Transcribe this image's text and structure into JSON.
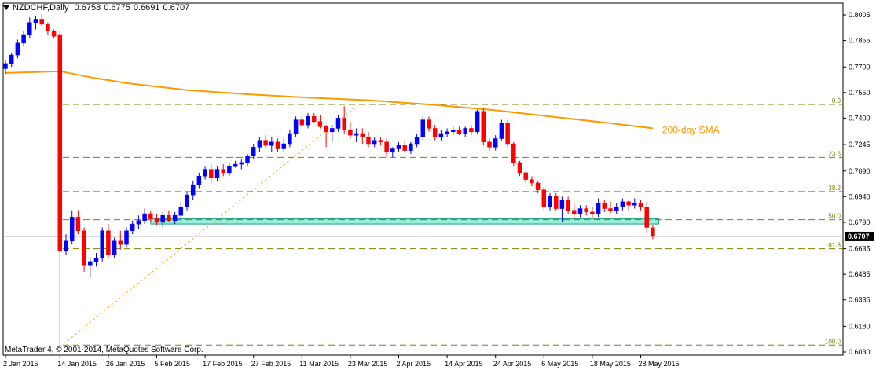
{
  "header": {
    "symbol_timeframe": "NZDCHF,Daily",
    "ohlc": [
      "0.6758",
      "0.6775",
      "0.6691",
      "0.6707"
    ]
  },
  "footer": {
    "copyright": "MetaTrader 4, © 2001-2014, MetaQuotes Software Corp."
  },
  "colors": {
    "bull": "#0000ff",
    "bear": "#ff0000",
    "sma": "#ff9900",
    "fib": "#808000",
    "zone": "#40e0c0",
    "grid": "#000000",
    "price_tag_bg": "#000000",
    "price_tag_fg": "#ffffff"
  },
  "chart_data": {
    "type": "candlestick",
    "instrument": "NZDCHF",
    "timeframe": "Daily",
    "ylim": [
      0.603,
      0.806
    ],
    "y_ticks": [
      "0.8005",
      "0.7855",
      "0.7700",
      "0.7550",
      "0.7400",
      "0.7245",
      "0.7090",
      "0.6940",
      "0.6790",
      "0.6635",
      "0.6485",
      "0.6335",
      "0.6180",
      "0.6030"
    ],
    "current_price": "0.6707",
    "x_labels": [
      "2 Jan 2015",
      "14 Jan 2015",
      "26 Jan 2015",
      "5 Feb 2015",
      "17 Feb 2015",
      "27 Feb 2015",
      "11 Mar 2015",
      "23 Mar 2015",
      "2 Apr 2015",
      "14 Apr 2015",
      "24 Apr 2015",
      "6 May 2015",
      "18 May 2015",
      "28 May 2015"
    ],
    "x_label_index": [
      0,
      9,
      17,
      25,
      33,
      41,
      49,
      57,
      65,
      73,
      81,
      89,
      97,
      105
    ],
    "candles": [
      [
        0.769,
        0.774,
        0.766,
        0.772
      ],
      [
        0.772,
        0.778,
        0.77,
        0.777
      ],
      [
        0.777,
        0.786,
        0.775,
        0.784
      ],
      [
        0.784,
        0.791,
        0.782,
        0.789
      ],
      [
        0.789,
        0.799,
        0.787,
        0.796
      ],
      [
        0.796,
        0.8,
        0.792,
        0.798
      ],
      [
        0.798,
        0.801,
        0.794,
        0.795
      ],
      [
        0.795,
        0.796,
        0.789,
        0.791
      ],
      [
        0.791,
        0.792,
        0.787,
        0.788
      ],
      [
        0.789,
        0.791,
        0.606,
        0.662
      ],
      [
        0.662,
        0.672,
        0.66,
        0.668
      ],
      [
        0.668,
        0.686,
        0.666,
        0.682
      ],
      [
        0.682,
        0.686,
        0.672,
        0.674
      ],
      [
        0.674,
        0.676,
        0.65,
        0.654
      ],
      [
        0.654,
        0.658,
        0.647,
        0.656
      ],
      [
        0.656,
        0.661,
        0.653,
        0.658
      ],
      [
        0.658,
        0.676,
        0.656,
        0.674
      ],
      [
        0.674,
        0.678,
        0.658,
        0.66
      ],
      [
        0.66,
        0.67,
        0.658,
        0.668
      ],
      [
        0.668,
        0.674,
        0.663,
        0.666
      ],
      [
        0.666,
        0.676,
        0.664,
        0.674
      ],
      [
        0.674,
        0.68,
        0.672,
        0.678
      ],
      [
        0.678,
        0.683,
        0.675,
        0.68
      ],
      [
        0.68,
        0.687,
        0.678,
        0.684
      ],
      [
        0.684,
        0.686,
        0.679,
        0.681
      ],
      [
        0.681,
        0.684,
        0.677,
        0.679
      ],
      [
        0.679,
        0.685,
        0.676,
        0.683
      ],
      [
        0.683,
        0.686,
        0.679,
        0.68
      ],
      [
        0.68,
        0.685,
        0.678,
        0.683
      ],
      [
        0.683,
        0.691,
        0.68,
        0.688
      ],
      [
        0.688,
        0.697,
        0.686,
        0.695
      ],
      [
        0.695,
        0.703,
        0.692,
        0.701
      ],
      [
        0.701,
        0.708,
        0.699,
        0.706
      ],
      [
        0.706,
        0.712,
        0.704,
        0.71
      ],
      [
        0.71,
        0.713,
        0.702,
        0.705
      ],
      [
        0.705,
        0.712,
        0.703,
        0.71
      ],
      [
        0.71,
        0.713,
        0.706,
        0.708
      ],
      [
        0.708,
        0.714,
        0.706,
        0.712
      ],
      [
        0.712,
        0.715,
        0.711,
        0.713
      ],
      [
        0.713,
        0.716,
        0.71,
        0.714
      ],
      [
        0.714,
        0.719,
        0.712,
        0.718
      ],
      [
        0.718,
        0.725,
        0.716,
        0.723
      ],
      [
        0.723,
        0.729,
        0.72,
        0.727
      ],
      [
        0.727,
        0.73,
        0.722,
        0.724
      ],
      [
        0.724,
        0.729,
        0.72,
        0.726
      ],
      [
        0.726,
        0.728,
        0.72,
        0.722
      ],
      [
        0.722,
        0.728,
        0.72,
        0.725
      ],
      [
        0.725,
        0.733,
        0.723,
        0.731
      ],
      [
        0.731,
        0.741,
        0.729,
        0.739
      ],
      [
        0.739,
        0.742,
        0.734,
        0.736
      ],
      [
        0.736,
        0.743,
        0.734,
        0.741
      ],
      [
        0.741,
        0.743,
        0.737,
        0.738
      ],
      [
        0.738,
        0.742,
        0.734,
        0.735
      ],
      [
        0.735,
        0.736,
        0.723,
        0.732
      ],
      [
        0.732,
        0.736,
        0.726,
        0.734
      ],
      [
        0.734,
        0.742,
        0.732,
        0.74
      ],
      [
        0.74,
        0.747,
        0.731,
        0.733
      ],
      [
        0.733,
        0.738,
        0.728,
        0.73
      ],
      [
        0.73,
        0.734,
        0.726,
        0.731
      ],
      [
        0.731,
        0.734,
        0.725,
        0.729
      ],
      [
        0.729,
        0.732,
        0.723,
        0.725
      ],
      [
        0.725,
        0.729,
        0.723,
        0.727
      ],
      [
        0.727,
        0.729,
        0.724,
        0.726
      ],
      [
        0.726,
        0.728,
        0.717,
        0.72
      ],
      [
        0.72,
        0.723,
        0.717,
        0.722
      ],
      [
        0.722,
        0.726,
        0.72,
        0.724
      ],
      [
        0.724,
        0.727,
        0.72,
        0.721
      ],
      [
        0.721,
        0.726,
        0.719,
        0.725
      ],
      [
        0.725,
        0.731,
        0.723,
        0.729
      ],
      [
        0.729,
        0.741,
        0.727,
        0.739
      ],
      [
        0.739,
        0.741,
        0.732,
        0.734
      ],
      [
        0.734,
        0.736,
        0.727,
        0.729
      ],
      [
        0.729,
        0.733,
        0.727,
        0.731
      ],
      [
        0.731,
        0.734,
        0.729,
        0.732
      ],
      [
        0.732,
        0.735,
        0.73,
        0.733
      ],
      [
        0.733,
        0.735,
        0.73,
        0.731
      ],
      [
        0.731,
        0.735,
        0.729,
        0.734
      ],
      [
        0.734,
        0.736,
        0.73,
        0.732
      ],
      [
        0.732,
        0.745,
        0.731,
        0.744
      ],
      [
        0.744,
        0.746,
        0.724,
        0.726
      ],
      [
        0.726,
        0.728,
        0.721,
        0.723
      ],
      [
        0.723,
        0.73,
        0.721,
        0.728
      ],
      [
        0.728,
        0.739,
        0.727,
        0.737
      ],
      [
        0.737,
        0.739,
        0.723,
        0.725
      ],
      [
        0.725,
        0.726,
        0.712,
        0.714
      ],
      [
        0.714,
        0.715,
        0.706,
        0.708
      ],
      [
        0.708,
        0.709,
        0.702,
        0.704
      ],
      [
        0.704,
        0.706,
        0.7,
        0.702
      ],
      [
        0.702,
        0.703,
        0.696,
        0.698
      ],
      [
        0.698,
        0.7,
        0.686,
        0.688
      ],
      [
        0.688,
        0.696,
        0.686,
        0.694
      ],
      [
        0.694,
        0.696,
        0.686,
        0.687
      ],
      [
        0.687,
        0.694,
        0.679,
        0.692
      ],
      [
        0.692,
        0.694,
        0.684,
        0.686
      ],
      [
        0.686,
        0.69,
        0.681,
        0.684
      ],
      [
        0.684,
        0.689,
        0.682,
        0.687
      ],
      [
        0.687,
        0.689,
        0.683,
        0.685
      ],
      [
        0.685,
        0.688,
        0.682,
        0.684
      ],
      [
        0.684,
        0.693,
        0.682,
        0.69
      ],
      [
        0.69,
        0.692,
        0.685,
        0.687
      ],
      [
        0.687,
        0.691,
        0.684,
        0.686
      ],
      [
        0.686,
        0.69,
        0.684,
        0.688
      ],
      [
        0.688,
        0.693,
        0.686,
        0.691
      ],
      [
        0.691,
        0.692,
        0.686,
        0.689
      ],
      [
        0.689,
        0.693,
        0.687,
        0.69
      ],
      [
        0.69,
        0.692,
        0.686,
        0.688
      ],
      [
        0.688,
        0.691,
        0.673,
        0.676
      ],
      [
        0.6758,
        0.6775,
        0.6691,
        0.6707
      ]
    ],
    "sma": {
      "label": "200-day SMA",
      "points": [
        [
          0,
          0.7665
        ],
        [
          5,
          0.767
        ],
        [
          9,
          0.7675
        ],
        [
          14,
          0.764
        ],
        [
          20,
          0.7605
        ],
        [
          30,
          0.7565
        ],
        [
          40,
          0.754
        ],
        [
          50,
          0.752
        ],
        [
          60,
          0.7505
        ],
        [
          70,
          0.748
        ],
        [
          80,
          0.745
        ],
        [
          90,
          0.741
        ],
        [
          100,
          0.737
        ],
        [
          107,
          0.734
        ]
      ]
    },
    "fib_levels": [
      {
        "label": "0.0",
        "price": 0.748
      },
      {
        "label": "23.6",
        "price": 0.717
      },
      {
        "label": "38.2",
        "price": 0.697
      },
      {
        "label": "50.0",
        "price": 0.6805
      },
      {
        "label": "61.8",
        "price": 0.6635
      },
      {
        "label": "100.0",
        "price": 0.607
      }
    ],
    "fib_trendline": {
      "from": [
        9,
        0.606
      ],
      "to": [
        58,
        0.747
      ]
    },
    "support_zone": {
      "from_index": 24,
      "to_index": 108,
      "y0": 0.678,
      "y1": 0.681
    },
    "grid": false
  }
}
